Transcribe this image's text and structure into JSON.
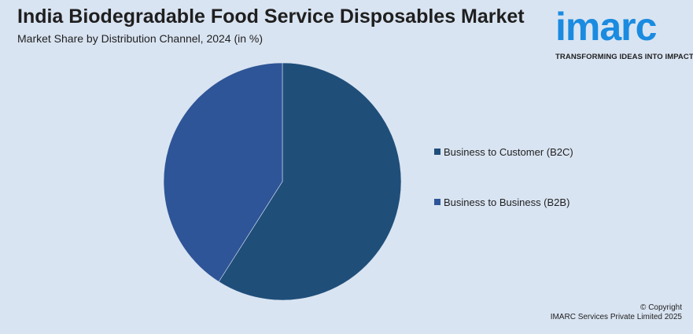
{
  "header": {
    "title": "India Biodegradable Food Service Disposables Market",
    "subtitle": "Market Share by Distribution Channel, 2024 (in %)"
  },
  "logo": {
    "word": "imarc",
    "tagline": "TRANSFORMING IDEAS INTO IMPACT",
    "color": "#1a8be0"
  },
  "chart_data": {
    "type": "pie",
    "title": "India Biodegradable Food Service Disposables Market",
    "subtitle": "Market Share by Distribution Channel, 2024 (in %)",
    "categories": [
      "Business to Customer (B2C)",
      "Business to Business (B2B)"
    ],
    "values": [
      59,
      41
    ],
    "colors": [
      "#1f4e79",
      "#2e5597"
    ],
    "legend_position": "right"
  },
  "footer": {
    "copyright_line1": "© Copyright",
    "copyright_line2": "IMARC Services Private Limited 2025"
  }
}
